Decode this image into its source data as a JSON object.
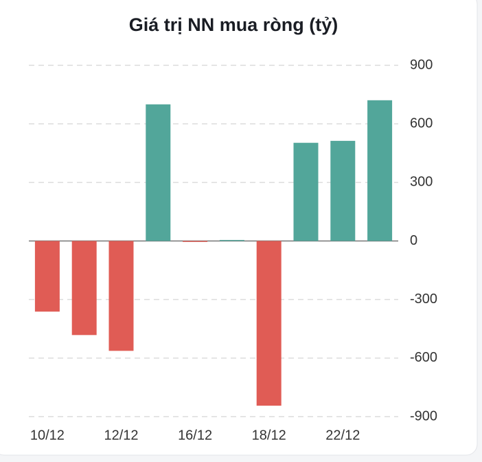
{
  "chart_data": {
    "type": "bar",
    "title": "Giá trị NN mua ròng (tỷ)",
    "categories": [
      "10/12",
      null,
      "12/12",
      null,
      "16/12",
      null,
      "18/12",
      null,
      "22/12",
      null
    ],
    "values": [
      -362,
      -482,
      -563,
      700,
      -5,
      5,
      -844,
      503,
      513,
      721
    ],
    "positive_color": "#52a69a",
    "negative_color": "#e05c55",
    "ylim": [
      -900,
      900
    ],
    "yticks": [
      -900,
      -600,
      -300,
      0,
      300,
      600,
      900
    ],
    "grid": true
  }
}
